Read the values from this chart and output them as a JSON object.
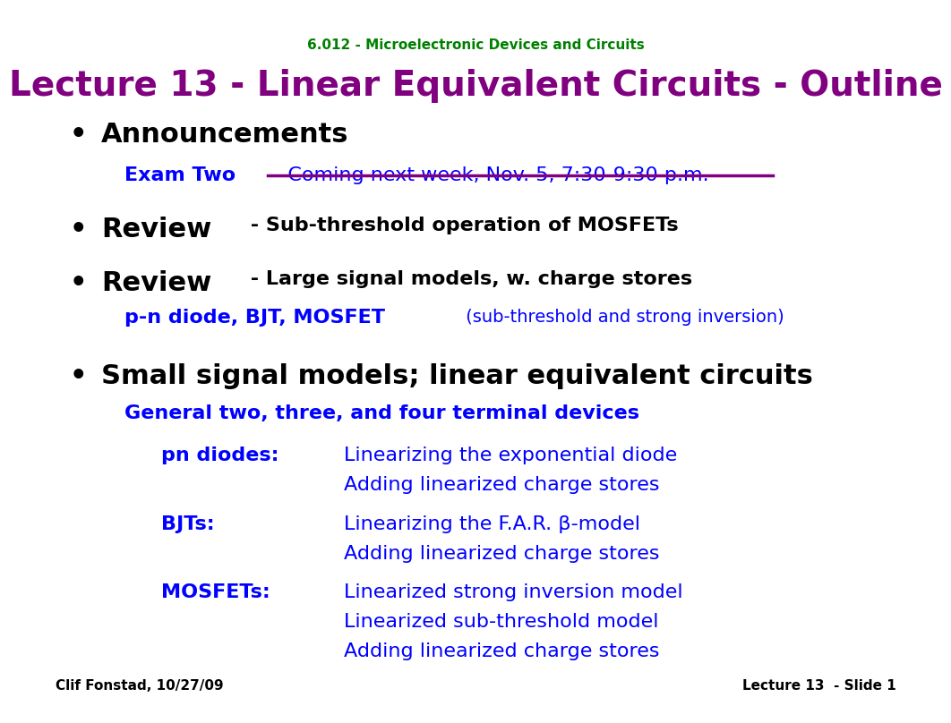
{
  "bg_color": "#ffffff",
  "subtitle": "6.012 - Microelectronic Devices and Circuits",
  "subtitle_color": "#008000",
  "title_part1": "Lecture 13 - ",
  "title_part2": "Linear Equivalent Circuits",
  "title_part3": " - Outline",
  "title_color": "#800080",
  "footer_left": "Clif Fonstad, 10/27/09",
  "footer_right": "Lecture 13  - Slide 1",
  "footer_color": "#000000",
  "fig_width": 10.2,
  "fig_height": 7.88,
  "title_fontsize": 28,
  "subtitle_fontsize": 11,
  "bullet_fontsize": 22,
  "body_fontsize": 16,
  "small_fontsize": 14,
  "footer_fontsize": 11
}
